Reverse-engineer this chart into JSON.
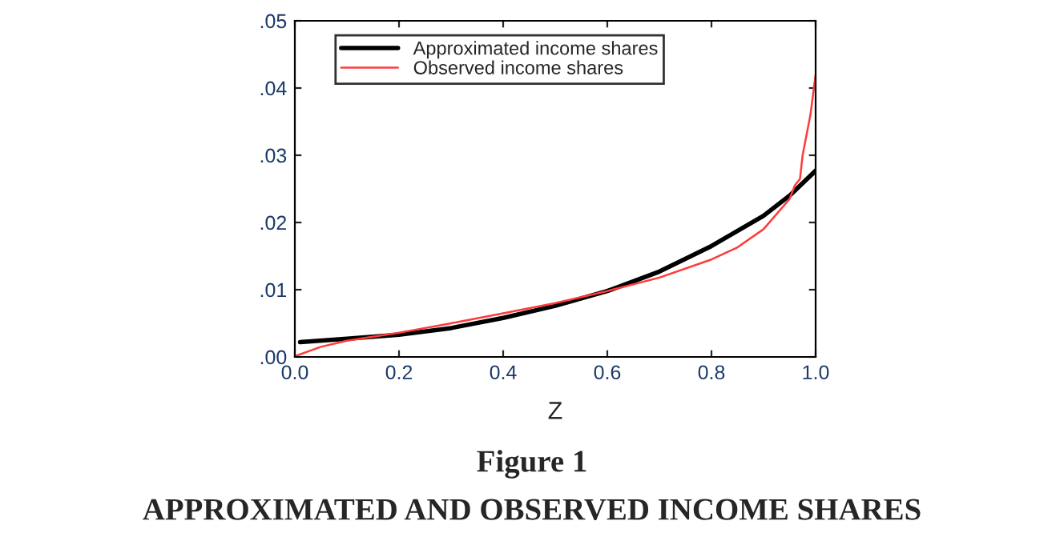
{
  "chart_data": {
    "type": "line",
    "xlabel": "Z",
    "xlim": [
      0.0,
      1.0
    ],
    "xticks": [
      {
        "value": 0.0,
        "label": "0.0"
      },
      {
        "value": 0.2,
        "label": "0.2"
      },
      {
        "value": 0.4,
        "label": "0.4"
      },
      {
        "value": 0.6,
        "label": "0.6"
      },
      {
        "value": 0.8,
        "label": "0.8"
      },
      {
        "value": 1.0,
        "label": "1.0"
      }
    ],
    "ylim": [
      0.0,
      0.05
    ],
    "yticks": [
      {
        "value": 0.0,
        "label": ".00"
      },
      {
        "value": 0.01,
        "label": ".01"
      },
      {
        "value": 0.02,
        "label": ".02"
      },
      {
        "value": 0.03,
        "label": ".03"
      },
      {
        "value": 0.04,
        "label": ".04"
      },
      {
        "value": 0.05,
        "label": ".05"
      }
    ],
    "grid": false,
    "legend": "top left",
    "marker": "none",
    "line_style": "solid",
    "series": [
      {
        "name": "Approximated income shares",
        "color": "#000000",
        "x": [
          0.01,
          0.1,
          0.2,
          0.3,
          0.4,
          0.5,
          0.6,
          0.7,
          0.8,
          0.9,
          0.95,
          1.0
        ],
        "values": [
          0.0022,
          0.0027,
          0.0033,
          0.0043,
          0.0058,
          0.0076,
          0.0098,
          0.0127,
          0.0165,
          0.021,
          0.024,
          0.0277
        ]
      },
      {
        "name": "Observed income shares",
        "color": "#ff3b3b",
        "x": [
          0.0,
          0.05,
          0.1,
          0.2,
          0.3,
          0.4,
          0.5,
          0.6,
          0.7,
          0.8,
          0.85,
          0.9,
          0.95,
          0.96,
          0.97,
          0.975,
          0.99,
          1.0
        ],
        "values": [
          0.0001,
          0.0015,
          0.0024,
          0.0036,
          0.005,
          0.0065,
          0.008,
          0.0098,
          0.0118,
          0.0145,
          0.0163,
          0.019,
          0.0235,
          0.0255,
          0.0265,
          0.03,
          0.036,
          0.042
        ]
      }
    ],
    "annotations": [
      "Figure 1",
      "APPROXIMATED AND OBSERVED INCOME SHARES"
    ]
  }
}
